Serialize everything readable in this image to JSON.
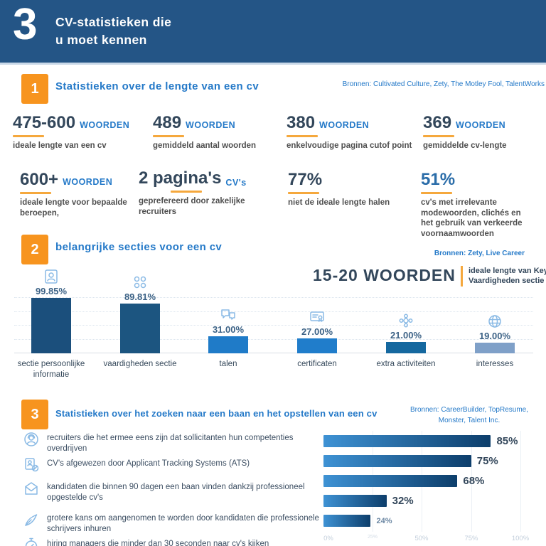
{
  "header": {
    "number": "3",
    "title_line1": "CV-statistieken die",
    "title_line2": "u moet kennen"
  },
  "colors": {
    "navy": "#245586",
    "orange": "#F7941E",
    "blue": "#2479C8",
    "dark_text": "#33475B",
    "icon_blue": "#8ABAE5"
  },
  "sections": [
    {
      "number": "1",
      "title": "Statistieken over de lengte van een cv",
      "sources": "Bronnen: Cultivated Culture, Zety, The Motley Fool, TalentWorks"
    },
    {
      "number": "2",
      "title": "belangrijke secties voor een cv",
      "sources": "Bronnen: Zety, Live Career"
    },
    {
      "number": "3",
      "title": "Statistieken over het zoeken naar een baan en het opstellen van een cv",
      "sources_line1": "Bronnen: CareerBuilder, TopResume,",
      "sources_line2": "Monster, Talent Inc."
    }
  ],
  "stats": [
    {
      "number": "475-600",
      "unit": "WOORDEN",
      "caption": "ideale lengte van een cv"
    },
    {
      "number": "489",
      "unit": "WOORDEN",
      "caption": "gemiddeld aantal woorden"
    },
    {
      "number": "380",
      "unit": "WOORDEN",
      "caption": "enkelvoudige pagina cutof point"
    },
    {
      "number": "369",
      "unit": "WOORDEN",
      "caption": "gemiddelde cv-lengte"
    },
    {
      "number": "600+",
      "unit": "WOORDEN",
      "caption": "ideale lengte voor bepaalde beroepen,"
    },
    {
      "number": "2 pagina's",
      "unit": "CV's",
      "caption": "geprefereerd door zakelijke recruiters"
    },
    {
      "number": "77%",
      "unit": "",
      "caption": "niet de ideale lengte halen"
    },
    {
      "number": "51%",
      "unit": "",
      "caption": "cv's met irrelevante modewoorden, clichés en het gebruik van verkeerde voornaamwoorden"
    }
  ],
  "highlight": {
    "value": "15-20 WOORDEN",
    "label": "ideale lengte van Key Vaardigheden sectie"
  },
  "chart_data": [
    {
      "type": "bar",
      "title": "belangrijke secties voor een cv",
      "categories": [
        "sectie persoonlijke informatie",
        "vaardigheden sectie",
        "talen",
        "certificaten",
        "extra activiteiten",
        "interesses"
      ],
      "values": [
        99.85,
        89.81,
        31.0,
        27.0,
        21.0,
        19.0
      ],
      "value_labels": [
        "99.85%",
        "89.81%",
        "31.00%",
        "27.00%",
        "21.00%",
        "19.00%"
      ],
      "bar_colors": [
        "#1B4F7C",
        "#1C5580",
        "#1F7BC8",
        "#207DCB",
        "#15689F",
        "#7FA0C8"
      ],
      "icons": [
        "person",
        "skills",
        "languages",
        "certificate",
        "activities",
        "interests"
      ],
      "ylim": [
        0,
        100
      ],
      "grid": true,
      "value_suffix": "%"
    },
    {
      "type": "bar-horizontal",
      "title": "Statistieken over het zoeken naar een baan en het opstellen van een cv",
      "categories": [
        "recruiters die het ermee eens zijn dat sollicitanten hun competenties overdrijven",
        "CV's afgewezen door Applicant Tracking Systems (ATS)",
        "kandidaten die binnen 90 dagen een baan vinden dankzij professioneel opgestelde cv's",
        "grotere kans om aangenomen te worden door kandidaten die professionele schrijvers inhuren",
        "hiring managers die minder dan 30 seconden naar cv's kijken"
      ],
      "values": [
        85,
        75,
        68,
        32,
        24
      ],
      "value_labels": [
        "85%",
        "75%",
        "68%",
        "32%",
        "24%"
      ],
      "small_label_index": 4,
      "icons": [
        "recruiter",
        "ats",
        "envelope",
        "pen",
        "stopwatch"
      ],
      "x_ticks": [
        "0%",
        "25%",
        "50%",
        "75%",
        "100%"
      ],
      "faint_tick_index": 1,
      "xlim": [
        0,
        100
      ],
      "grid": true,
      "bar_gradient": [
        "#3E92D4",
        "#0D3E6B"
      ]
    }
  ]
}
